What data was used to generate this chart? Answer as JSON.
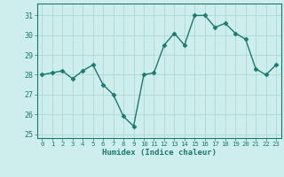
{
  "x": [
    0,
    1,
    2,
    3,
    4,
    5,
    6,
    7,
    8,
    9,
    10,
    11,
    12,
    13,
    14,
    15,
    16,
    17,
    18,
    19,
    20,
    21,
    22,
    23
  ],
  "y": [
    28.0,
    28.1,
    28.2,
    27.8,
    28.2,
    28.5,
    27.5,
    27.0,
    25.9,
    25.4,
    28.0,
    28.1,
    29.5,
    30.1,
    29.5,
    31.0,
    31.0,
    30.4,
    30.6,
    30.1,
    29.8,
    28.3,
    28.0,
    28.5
  ],
  "line_color": "#1a7a6e",
  "marker": "D",
  "marker_size": 2.5,
  "bg_color": "#ceeeed",
  "grid_color": "#aed8d5",
  "ylabel_values": [
    25,
    26,
    27,
    28,
    29,
    30,
    31
  ],
  "xlabel": "Humidex (Indice chaleur)",
  "ylim": [
    24.8,
    31.6
  ],
  "xlim": [
    -0.5,
    23.5
  ],
  "tick_color": "#1a7a6e",
  "label_color": "#1a7a6e"
}
